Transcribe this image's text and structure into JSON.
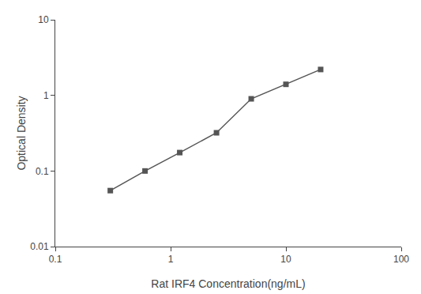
{
  "chart_data": {
    "type": "line",
    "x": [
      0.3,
      0.6,
      1.2,
      2.5,
      5.0,
      10.0,
      20.0
    ],
    "values": [
      0.055,
      0.1,
      0.175,
      0.32,
      0.9,
      1.4,
      2.2
    ],
    "xlabel": "Rat IRF4 Concentration(ng/mL)",
    "ylabel": "Optical Density",
    "color": "#555555",
    "marker": "square",
    "line_style": "solid",
    "log": true,
    "xlim": [
      0.1,
      100
    ],
    "ylim": [
      0.01,
      10
    ],
    "xticks": [
      0.1,
      1,
      10,
      100
    ],
    "yticks": [
      0.01,
      0.1,
      1,
      10
    ],
    "grid": false
  }
}
